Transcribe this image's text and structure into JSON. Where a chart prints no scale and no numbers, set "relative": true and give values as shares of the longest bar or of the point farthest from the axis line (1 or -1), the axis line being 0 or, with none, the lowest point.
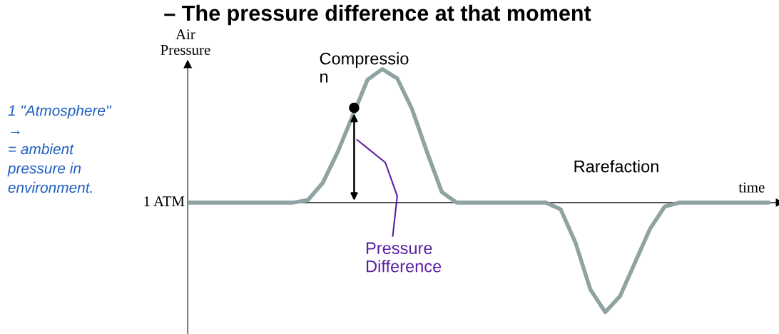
{
  "chart_data": {
    "type": "line",
    "relative": true,
    "title": "– The pressure difference at that moment",
    "ylabel": "Air\nPressure",
    "xlabel": "time",
    "categories": [
      null,
      null,
      null,
      null,
      null,
      null,
      null,
      null,
      null,
      null,
      null,
      null,
      null,
      null,
      null,
      null,
      null,
      null,
      null,
      null,
      null,
      null,
      null,
      null,
      null,
      null,
      null,
      null,
      null,
      null,
      null,
      null,
      null,
      null,
      null,
      null,
      null,
      null,
      null,
      null
    ],
    "series": [
      {
        "color": "#8fa3a3",
        "values": [
          0,
          0,
          0,
          0,
          0,
          0,
          0,
          0,
          0.02,
          0.15,
          0.38,
          0.65,
          0.92,
          1.0,
          0.93,
          0.7,
          0.38,
          0.08,
          0,
          0,
          0,
          0,
          0,
          0,
          0,
          -0.05,
          -0.3,
          -0.65,
          -0.82,
          -0.7,
          -0.45,
          -0.2,
          -0.03,
          0,
          0,
          0,
          0,
          0,
          0,
          0
        ]
      }
    ],
    "annotations": [
      "Compressio\nn",
      "Rarefaction",
      "Pressure\nDifference",
      "1 \"Atmosphere\"\n→\n= ambient\npressure in\nenvironment.",
      "1 ATM"
    ],
    "grid": false
  }
}
